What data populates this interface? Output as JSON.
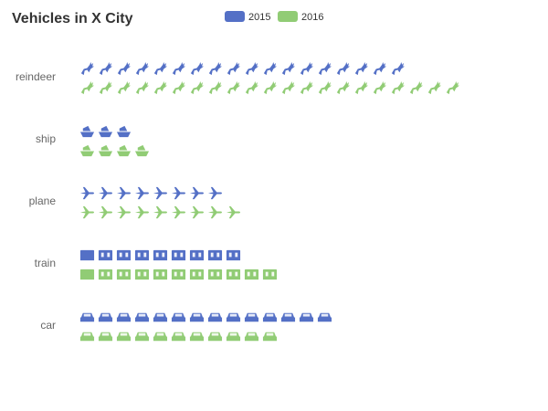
{
  "chart_data": {
    "type": "pictorial-bar",
    "title": "Vehicles in X City",
    "unit_per_icon": 1,
    "categories": [
      "reindeer",
      "ship",
      "plane",
      "train",
      "car"
    ],
    "series": [
      {
        "name": "2015",
        "color": "#5470c6",
        "values": [
          18,
          3,
          8,
          9,
          14
        ]
      },
      {
        "name": "2016",
        "color": "#91cc75",
        "values": [
          21,
          4,
          9,
          11,
          11
        ]
      }
    ],
    "icons": {
      "reindeer": "reindeer-icon",
      "ship": "ship-icon",
      "plane": "plane-icon",
      "train": "train-icon",
      "car": "car-icon"
    },
    "legend_position": "top-center",
    "grid": false
  }
}
